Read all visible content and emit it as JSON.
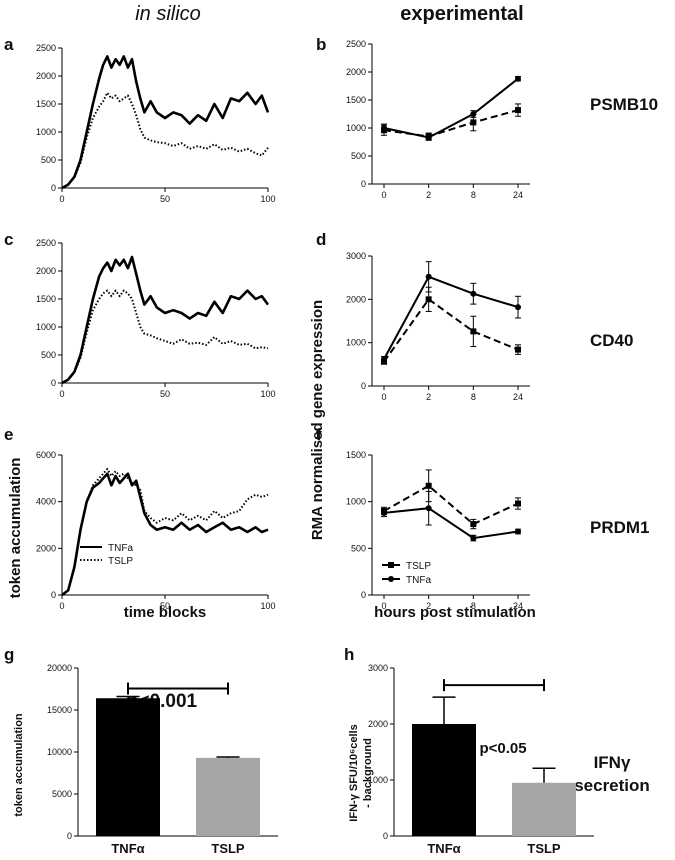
{
  "headers": {
    "left": "in silico",
    "right": "experimental"
  },
  "shared_labels": {
    "left_ylabel": "token accumulation",
    "left_xlabel": "time blocks",
    "right_ylabel": "RMA normalised gene expression",
    "right_xlabel": "hours post stimulation"
  },
  "colors": {
    "line": "#000000",
    "bar_tnfa": "#000000",
    "bar_tslp": "#a6a6a6",
    "axis": "#000000"
  },
  "chart_data": [
    {
      "id": "a",
      "panel_label": "a",
      "type": "line",
      "xlim": [
        0,
        100
      ],
      "ylim": [
        0,
        2500
      ],
      "xticks": [
        0,
        50,
        100
      ],
      "yticks": [
        0,
        500,
        1000,
        1500,
        2000,
        2500
      ],
      "series": [
        {
          "name": "TNFa",
          "style": "solid",
          "x": [
            0,
            3,
            6,
            9,
            12,
            15,
            18,
            20,
            22,
            24,
            26,
            28,
            30,
            32,
            34,
            36,
            38,
            40,
            43,
            46,
            50,
            54,
            58,
            62,
            66,
            70,
            74,
            78,
            82,
            86,
            90,
            94,
            97,
            100
          ],
          "y": [
            0,
            60,
            200,
            500,
            1000,
            1500,
            1950,
            2200,
            2350,
            2150,
            2300,
            2200,
            2350,
            2150,
            2300,
            1900,
            1600,
            1350,
            1550,
            1350,
            1250,
            1350,
            1300,
            1150,
            1300,
            1200,
            1500,
            1250,
            1600,
            1550,
            1700,
            1500,
            1650,
            1350
          ]
        },
        {
          "name": "TSLP",
          "style": "dotted",
          "x": [
            0,
            3,
            6,
            9,
            12,
            15,
            18,
            20,
            22,
            24,
            26,
            28,
            30,
            32,
            34,
            36,
            38,
            40,
            43,
            46,
            50,
            54,
            58,
            62,
            66,
            70,
            74,
            78,
            82,
            86,
            90,
            94,
            97,
            100
          ],
          "y": [
            0,
            60,
            190,
            450,
            900,
            1250,
            1450,
            1550,
            1700,
            1600,
            1650,
            1550,
            1600,
            1650,
            1500,
            1300,
            1050,
            900,
            850,
            820,
            800,
            750,
            800,
            700,
            750,
            700,
            780,
            680,
            720,
            650,
            700,
            620,
            580,
            720
          ]
        }
      ]
    },
    {
      "id": "b",
      "panel_label": "b",
      "type": "line",
      "gene": "PSMB10",
      "categories": [
        "0",
        "2",
        "8",
        "24"
      ],
      "ylim": [
        0,
        2500
      ],
      "yticks": [
        0,
        500,
        1000,
        1500,
        2000,
        2500
      ],
      "series": [
        {
          "name": "TNFa",
          "style": "solid",
          "marker": "circle",
          "values": [
            1000,
            830,
            1250,
            1880
          ],
          "errors": [
            70,
            50,
            60,
            40
          ]
        },
        {
          "name": "TSLP",
          "style": "dashed",
          "marker": "square",
          "values": [
            960,
            850,
            1100,
            1320
          ],
          "errors": [
            90,
            60,
            150,
            110
          ]
        }
      ]
    },
    {
      "id": "c",
      "panel_label": "c",
      "type": "line",
      "xlim": [
        0,
        100
      ],
      "ylim": [
        0,
        2500
      ],
      "xticks": [
        0,
        50,
        100
      ],
      "yticks": [
        0,
        500,
        1000,
        1500,
        2000,
        2500
      ],
      "series": [
        {
          "name": "TNFa",
          "style": "solid",
          "x": [
            0,
            3,
            6,
            9,
            12,
            15,
            18,
            20,
            22,
            24,
            26,
            28,
            30,
            32,
            34,
            36,
            38,
            40,
            43,
            46,
            50,
            54,
            58,
            62,
            66,
            70,
            74,
            78,
            82,
            86,
            90,
            94,
            97,
            100
          ],
          "y": [
            0,
            60,
            200,
            500,
            1000,
            1500,
            1900,
            2050,
            2150,
            2000,
            2200,
            2100,
            2200,
            2050,
            2250,
            1950,
            1650,
            1400,
            1550,
            1350,
            1250,
            1300,
            1250,
            1150,
            1250,
            1200,
            1450,
            1250,
            1550,
            1500,
            1650,
            1500,
            1550,
            1400
          ]
        },
        {
          "name": "TSLP",
          "style": "dotted",
          "x": [
            0,
            3,
            6,
            9,
            12,
            15,
            18,
            20,
            22,
            24,
            26,
            28,
            30,
            32,
            34,
            36,
            38,
            40,
            43,
            46,
            50,
            54,
            58,
            62,
            66,
            70,
            74,
            78,
            82,
            86,
            90,
            94,
            97,
            100
          ],
          "y": [
            0,
            60,
            190,
            450,
            900,
            1300,
            1500,
            1600,
            1650,
            1550,
            1650,
            1550,
            1650,
            1600,
            1500,
            1250,
            1000,
            880,
            850,
            800,
            750,
            700,
            780,
            700,
            720,
            680,
            820,
            700,
            750,
            680,
            700,
            620,
            640,
            620
          ]
        }
      ]
    },
    {
      "id": "d",
      "panel_label": "d",
      "type": "line",
      "gene": "CD40",
      "categories": [
        "0",
        "2",
        "8",
        "24"
      ],
      "ylim": [
        0,
        3000
      ],
      "yticks": [
        0,
        1000,
        2000,
        3000
      ],
      "series": [
        {
          "name": "TNFa",
          "style": "solid",
          "marker": "circle",
          "values": [
            620,
            2520,
            2130,
            1820
          ],
          "errors": [
            60,
            350,
            240,
            250
          ]
        },
        {
          "name": "TSLP",
          "style": "dashed",
          "marker": "square",
          "values": [
            560,
            2000,
            1260,
            840
          ],
          "errors": [
            50,
            280,
            350,
            110
          ]
        }
      ]
    },
    {
      "id": "e",
      "panel_label": "e",
      "type": "line",
      "xlim": [
        0,
        100
      ],
      "ylim": [
        0,
        6000
      ],
      "xticks": [
        0,
        50,
        100
      ],
      "yticks": [
        0,
        2000,
        4000,
        6000
      ],
      "legend": [
        {
          "name": "TNFa",
          "style": "solid"
        },
        {
          "name": "TSLP",
          "style": "dotted"
        }
      ],
      "series": [
        {
          "name": "TNFa",
          "style": "solid",
          "x": [
            0,
            3,
            6,
            9,
            12,
            15,
            18,
            20,
            22,
            24,
            26,
            28,
            30,
            32,
            34,
            36,
            38,
            40,
            43,
            46,
            50,
            54,
            58,
            62,
            66,
            70,
            74,
            78,
            82,
            86,
            90,
            94,
            97,
            100
          ],
          "y": [
            0,
            200,
            1200,
            2800,
            4000,
            4600,
            4800,
            5000,
            5200,
            4700,
            5100,
            4800,
            5000,
            5200,
            4700,
            4900,
            4200,
            3500,
            3000,
            2800,
            2900,
            2800,
            3100,
            2800,
            3000,
            2700,
            2900,
            3100,
            2800,
            2900,
            2700,
            2900,
            2700,
            2800
          ]
        },
        {
          "name": "TSLP",
          "style": "dotted",
          "x": [
            0,
            3,
            6,
            9,
            12,
            15,
            18,
            20,
            22,
            24,
            26,
            28,
            30,
            32,
            34,
            36,
            38,
            40,
            43,
            46,
            50,
            54,
            58,
            62,
            66,
            70,
            74,
            78,
            82,
            86,
            90,
            94,
            97,
            100
          ],
          "y": [
            0,
            200,
            1200,
            2800,
            4000,
            4700,
            5000,
            5200,
            5400,
            5100,
            5300,
            5100,
            5200,
            5000,
            4800,
            4700,
            4500,
            3600,
            3300,
            3100,
            3300,
            3200,
            3500,
            3200,
            3400,
            3200,
            3600,
            3300,
            3500,
            3600,
            4100,
            4300,
            4200,
            4300
          ]
        }
      ]
    },
    {
      "id": "f",
      "panel_label": "f",
      "type": "line",
      "gene": "PRDM1",
      "categories": [
        "0",
        "2",
        "8",
        "24"
      ],
      "ylim": [
        0,
        1500
      ],
      "yticks": [
        0,
        500,
        1000,
        1500
      ],
      "legend": [
        {
          "name": "TSLP",
          "style": "dashed",
          "marker": "square"
        },
        {
          "name": "TNFa",
          "style": "solid",
          "marker": "circle"
        }
      ],
      "series": [
        {
          "name": "TNFa",
          "style": "solid",
          "marker": "circle",
          "values": [
            880,
            930,
            610,
            680
          ],
          "errors": [
            40,
            180,
            30,
            25
          ]
        },
        {
          "name": "TSLP",
          "style": "dashed",
          "marker": "square",
          "values": [
            900,
            1170,
            760,
            980
          ],
          "errors": [
            40,
            170,
            50,
            60
          ]
        }
      ]
    },
    {
      "id": "g",
      "panel_label": "g",
      "type": "bar",
      "categories": [
        "TNFα",
        "TSLP"
      ],
      "values": [
        16400,
        9300
      ],
      "errors": [
        200,
        100
      ],
      "ylim": [
        0,
        20000
      ],
      "yticks": [
        0,
        5000,
        10000,
        15000,
        20000
      ],
      "ylabel": "token accumulation",
      "annotation": "p<0.001"
    },
    {
      "id": "h",
      "panel_label": "h",
      "type": "bar",
      "categories": [
        "TNFα",
        "TSLP"
      ],
      "values": [
        2000,
        950
      ],
      "errors": [
        480,
        260
      ],
      "ylim": [
        0,
        3000
      ],
      "yticks": [
        0,
        1000,
        2000,
        3000
      ],
      "ylabel_line1": "IFN-γ SFU/10⁶cells",
      "ylabel_line2": "- background",
      "annotation": "p<0.05",
      "side_label_line1": "IFNγ",
      "side_label_line2": "secretion"
    }
  ]
}
